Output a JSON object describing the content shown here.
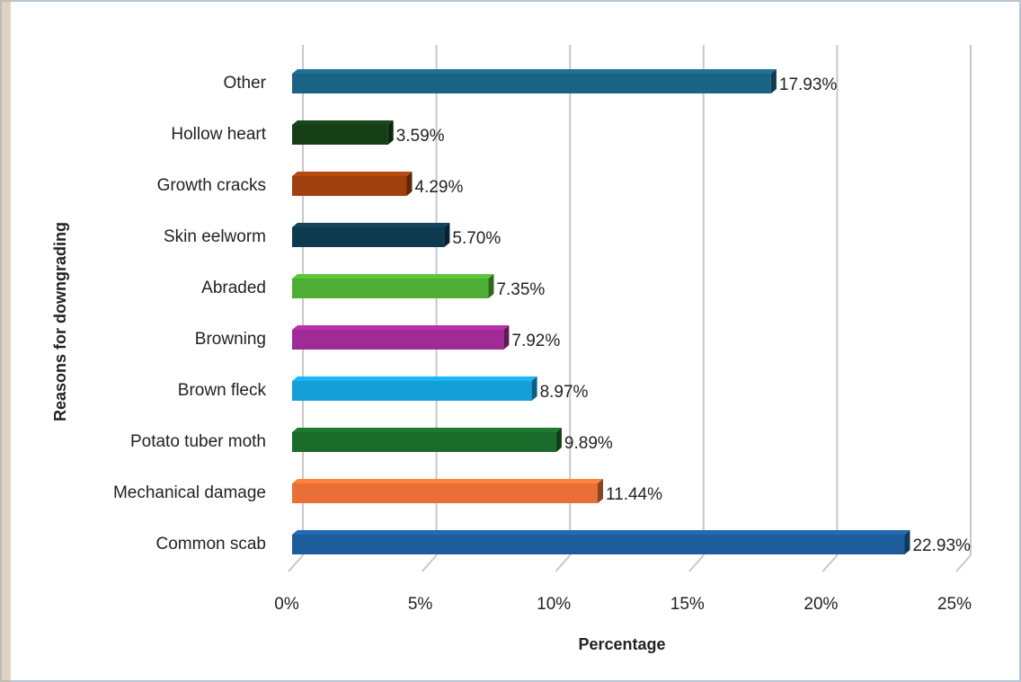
{
  "chart_data": {
    "type": "bar",
    "orientation": "horizontal",
    "x_label": "Percentage",
    "y_label": "Reasons for downgrading",
    "categories": [
      "Other",
      "Hollow heart",
      "Growth cracks",
      "Skin eelworm",
      "Abraded",
      "Browning",
      "Brown fleck",
      "Potato tuber moth",
      "Mechanical damage",
      "Common scab"
    ],
    "values": [
      17.93,
      3.59,
      4.29,
      5.7,
      7.35,
      7.92,
      8.97,
      9.89,
      11.44,
      22.93
    ],
    "value_labels": [
      "17.93%",
      "3.59%",
      "4.29%",
      "5.70%",
      "7.35%",
      "7.92%",
      "8.97%",
      "9.89%",
      "11.44%",
      "22.93%"
    ],
    "colors": [
      "#1a6384",
      "#163f17",
      "#a0400f",
      "#0e3a50",
      "#4ead33",
      "#a02a96",
      "#149fd8",
      "#1a6a2a",
      "#e87035",
      "#1d5d9b"
    ],
    "xlim": [
      0,
      25
    ],
    "xticks": [
      {
        "value": 0,
        "label": "0%"
      },
      {
        "value": 5,
        "label": "5%"
      },
      {
        "value": 10,
        "label": "10%"
      },
      {
        "value": 15,
        "label": "15%"
      },
      {
        "value": 20,
        "label": "20%"
      },
      {
        "value": 25,
        "label": "25%"
      }
    ],
    "grid": true
  }
}
